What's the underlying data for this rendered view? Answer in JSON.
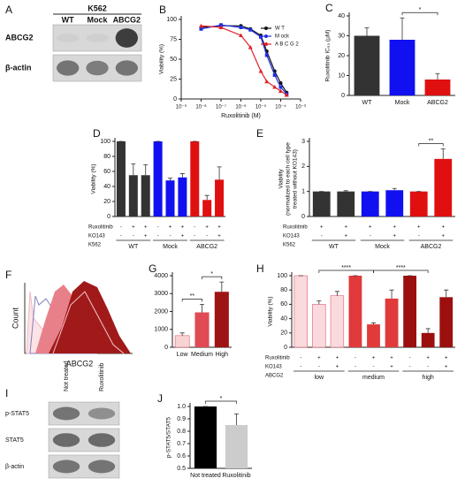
{
  "chart_data": [
    {
      "panel": "B",
      "type": "line",
      "xlabel": "Ruxolitinib (M)",
      "ylabel": "Viability (%)",
      "xscale": "log",
      "x": [
        1e-08,
        1e-07,
        1e-06,
        3e-06,
        1e-05,
        2e-05,
        5e-05,
        0.0001,
        0.0002
      ],
      "series": [
        {
          "name": "W T",
          "color": "#111111",
          "marker": "circle",
          "values": [
            90,
            92,
            92,
            88,
            80,
            60,
            35,
            20,
            8
          ]
        },
        {
          "name": "M ock",
          "color": "#1f2fe0",
          "marker": "square",
          "values": [
            88,
            93,
            90,
            87,
            78,
            55,
            30,
            15,
            6
          ]
        },
        {
          "name": "A B C G 2",
          "color": "#e0202a",
          "marker": "triangle",
          "values": [
            92,
            90,
            80,
            65,
            35,
            22,
            15,
            10,
            5
          ]
        }
      ],
      "xlim": [
        1e-09,
        0.001
      ],
      "xticks": [
        {
          "value": 1e-09,
          "label": "10⁻⁹"
        },
        {
          "value": 1e-08,
          "label": "10⁻⁸"
        },
        {
          "value": 1e-07,
          "label": "10⁻⁷"
        },
        {
          "value": 1e-06,
          "label": "10⁻⁶"
        },
        {
          "value": 1e-05,
          "label": "10⁻⁵"
        },
        {
          "value": 0.0001,
          "label": "10⁻⁴"
        },
        {
          "value": 0.001,
          "label": "10⁻³"
        }
      ],
      "ylim": [
        0,
        100
      ],
      "yticks": [
        0,
        25,
        50,
        75,
        100
      ],
      "legend": "upper right"
    },
    {
      "panel": "C",
      "type": "bar",
      "ylabel": "Ruxolitinib IC₅₀ (µM)",
      "categories": [
        "WT",
        "Mock",
        "ABCG2"
      ],
      "values": [
        30,
        28,
        8
      ],
      "errors": [
        4,
        11,
        3
      ],
      "colors": [
        "#333333",
        "#1010f0",
        "#e01010"
      ],
      "ylim": [
        0,
        40
      ],
      "yticks": [
        0,
        10,
        20,
        30,
        40
      ],
      "brackets": [
        {
          "between": [
            1,
            2
          ],
          "label": "*"
        }
      ]
    },
    {
      "panel": "D",
      "type": "bar",
      "ylabel": "Viability (%)",
      "values": [
        100,
        55,
        55,
        100,
        48,
        52,
        100,
        22,
        49
      ],
      "errors": [
        0,
        15,
        14,
        0,
        3,
        5,
        0,
        6,
        17
      ],
      "ylim": [
        0,
        100
      ],
      "yticks": [
        0,
        20,
        40,
        60,
        80,
        100
      ],
      "conditions": [
        {
          "name": "Ruxolitinib",
          "values": [
            "-",
            "+",
            "+",
            "-",
            "+",
            "+",
            "-",
            "+",
            "+"
          ]
        },
        {
          "name": "KO143",
          "values": [
            "-",
            "-",
            "+",
            "-",
            "-",
            "+",
            "-",
            "-",
            "+"
          ]
        }
      ],
      "group_label": "K562",
      "groups": [
        {
          "name": "WT",
          "color": "#333333"
        },
        {
          "name": "Mock",
          "color": "#1010f0"
        },
        {
          "name": "ABCG2",
          "color": "#e01010"
        }
      ]
    },
    {
      "panel": "E",
      "type": "bar",
      "ylabel": [
        "Viability",
        "(normalized to each cell type",
        "treated without KO143)"
      ],
      "values": [
        1,
        1,
        1,
        1.05,
        1,
        2.3
      ],
      "errors": [
        0,
        0.03,
        0,
        0.07,
        0,
        0.4
      ],
      "ylim": [
        0,
        3
      ],
      "yticks": [
        0,
        1,
        2,
        3
      ],
      "conditions": [
        {
          "name": "Ruxolitinib",
          "values": [
            "+",
            "+",
            "+",
            "+",
            "+",
            "+"
          ]
        },
        {
          "name": "KO143",
          "values": [
            "-",
            "+",
            "-",
            "+",
            "-",
            "+"
          ]
        }
      ],
      "group_label": "K562",
      "groups": [
        {
          "name": "WT",
          "color": "#333333"
        },
        {
          "name": "Mock",
          "color": "#1010f0"
        },
        {
          "name": "ABCG2",
          "color": "#e01010"
        }
      ],
      "brackets": [
        {
          "between": [
            4,
            5
          ],
          "label": "**"
        }
      ]
    },
    {
      "panel": "G",
      "type": "bar",
      "categories": [
        "Low",
        "Medium",
        "High"
      ],
      "values": [
        650,
        1950,
        3100
      ],
      "errors": [
        150,
        450,
        550
      ],
      "colors": [
        "#f8d3d3",
        "#e04a55",
        "#9e1414"
      ],
      "ylim": [
        0,
        4000
      ],
      "yticks": [
        0,
        1000,
        2000,
        3000,
        4000
      ],
      "brackets": [
        {
          "between": [
            0,
            1
          ],
          "label": "**"
        },
        {
          "between": [
            1,
            2
          ],
          "label": "*"
        }
      ]
    },
    {
      "panel": "H",
      "type": "bar",
      "ylabel": "Viability (%)",
      "values": [
        100,
        60,
        72,
        100,
        32,
        68,
        100,
        20,
        70
      ],
      "errors": [
        0,
        5,
        6,
        0,
        2,
        12,
        0,
        6,
        10
      ],
      "ylim": [
        0,
        100
      ],
      "yticks": [
        0,
        20,
        40,
        60,
        80,
        100
      ],
      "conditions": [
        {
          "name": "Ruxolitinib",
          "values": [
            "-",
            "+",
            "+",
            "-",
            "+",
            "+",
            "-",
            "+",
            "+"
          ]
        },
        {
          "name": "KO143",
          "values": [
            "-",
            "-",
            "+",
            "-",
            "-",
            "+",
            "-",
            "-",
            "+"
          ]
        }
      ],
      "group_label": "ABCG2",
      "groups": [
        {
          "name": "low",
          "color": "#fadadd"
        },
        {
          "name": "medium",
          "color": "#e03a3a"
        },
        {
          "name": "high",
          "color": "#9b0f0f"
        }
      ],
      "brackets": [
        {
          "between": [
            1,
            4
          ],
          "label": "****"
        },
        {
          "between": [
            4,
            7
          ],
          "label": "****"
        }
      ]
    },
    {
      "panel": "J",
      "type": "bar",
      "ylabel": "p-STAT5/STAT5",
      "categories": [
        "Not treated",
        "Ruxolitinib"
      ],
      "values": [
        1,
        0.85
      ],
      "errors": [
        0,
        0.09
      ],
      "colors": [
        "#000000",
        "#cccccc"
      ],
      "ylim": [
        0.5,
        1
      ],
      "yticks": [
        0.5,
        0.6,
        0.7,
        0.8,
        0.9,
        {
          "value": 1,
          "label": "1.0"
        }
      ],
      "brackets": [
        {
          "between": [
            0,
            1
          ],
          "label": "*"
        }
      ]
    }
  ],
  "blots": [
    {
      "panel": "A",
      "cell_line": "K562",
      "lanes": [
        "WT",
        "Mock",
        "ABCG2"
      ],
      "rows": [
        "ABCG2",
        "β-actin"
      ]
    },
    {
      "panel": "I",
      "lanes": [
        "Not treated",
        "Ruxolitinib"
      ],
      "rows": [
        "p-STAT5",
        "STAT5",
        "β-actin"
      ]
    }
  ],
  "flow": {
    "panel": "F",
    "xlabel": "ABCG2",
    "ylabel": "Count"
  }
}
